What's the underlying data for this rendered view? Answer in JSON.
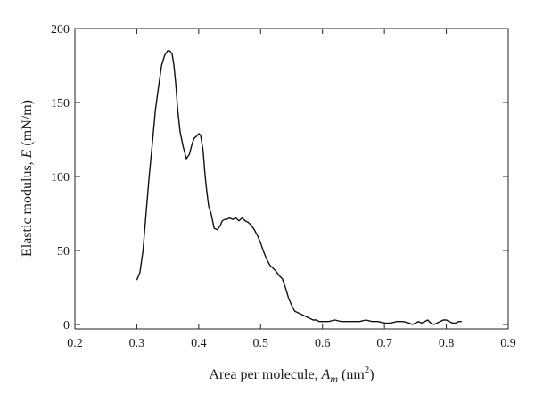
{
  "chart_data": {
    "type": "line",
    "xlabel": {
      "main": "Area per molecule, ",
      "var": "A",
      "sub": "m",
      "unit_open": " (nm",
      "sup": "2",
      "unit_close": ")"
    },
    "ylabel": {
      "main": "Elastic modulus, ",
      "var": "E",
      "unit": " (mN/m)"
    },
    "xlim": [
      0.2,
      0.9
    ],
    "ylim": [
      -3,
      200
    ],
    "xticks": [
      0.2,
      0.3,
      0.4,
      0.5,
      0.6,
      0.7,
      0.8,
      0.9
    ],
    "xtick_labels": [
      "0.2",
      "0.3",
      "0.4",
      "0.5",
      "0.6",
      "0.7",
      "0.8",
      "0.9"
    ],
    "yticks": [
      0,
      50,
      100,
      150,
      200
    ],
    "ytick_labels": [
      "0",
      "50",
      "100",
      "150",
      "200"
    ],
    "grid": false,
    "series": [
      {
        "color": "#111111",
        "x": [
          0.3,
          0.305,
          0.31,
          0.315,
          0.32,
          0.325,
          0.33,
          0.335,
          0.34,
          0.345,
          0.35,
          0.353,
          0.357,
          0.36,
          0.363,
          0.366,
          0.37,
          0.375,
          0.38,
          0.385,
          0.39,
          0.393,
          0.396,
          0.4,
          0.403,
          0.407,
          0.41,
          0.413,
          0.416,
          0.42,
          0.425,
          0.43,
          0.435,
          0.438,
          0.442,
          0.445,
          0.45,
          0.455,
          0.46,
          0.465,
          0.47,
          0.475,
          0.48,
          0.485,
          0.49,
          0.495,
          0.5,
          0.505,
          0.51,
          0.515,
          0.52,
          0.525,
          0.53,
          0.535,
          0.54,
          0.545,
          0.55,
          0.555,
          0.56,
          0.565,
          0.57,
          0.575,
          0.58,
          0.585,
          0.59,
          0.595,
          0.6,
          0.605,
          0.61,
          0.62,
          0.63,
          0.64,
          0.65,
          0.66,
          0.67,
          0.68,
          0.69,
          0.7,
          0.71,
          0.72,
          0.73,
          0.74,
          0.745,
          0.75,
          0.755,
          0.76,
          0.765,
          0.77,
          0.775,
          0.78,
          0.785,
          0.79,
          0.795,
          0.8,
          0.805,
          0.81,
          0.815,
          0.82,
          0.825
        ],
        "y": [
          30,
          35,
          50,
          75,
          100,
          122,
          145,
          160,
          175,
          182,
          185,
          185,
          183,
          175,
          162,
          145,
          130,
          120,
          112,
          115,
          123,
          126,
          127,
          129,
          128,
          118,
          102,
          90,
          80,
          75,
          65,
          64,
          67,
          70,
          71,
          71,
          72,
          71,
          72,
          70,
          72,
          70,
          69,
          67,
          64,
          60,
          55,
          49,
          44,
          40,
          38,
          36,
          33,
          31,
          25,
          18,
          13,
          9,
          8,
          7,
          6,
          5,
          4,
          3,
          3,
          2,
          2,
          2,
          2,
          3,
          2,
          2,
          2,
          2,
          3,
          2,
          2,
          1,
          1,
          2,
          2,
          1,
          0,
          1,
          2,
          1,
          2,
          3,
          1,
          0,
          1,
          2,
          3,
          3,
          2,
          1,
          1,
          2,
          2
        ]
      }
    ]
  }
}
